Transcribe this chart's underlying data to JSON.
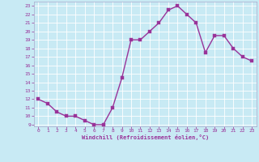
{
  "x": [
    0,
    1,
    2,
    3,
    4,
    5,
    6,
    7,
    8,
    9,
    10,
    11,
    12,
    13,
    14,
    15,
    16,
    17,
    18,
    19,
    20,
    21,
    22,
    23
  ],
  "y": [
    12,
    11.5,
    10.5,
    10,
    10,
    9.5,
    9,
    9,
    11,
    14.5,
    19,
    19,
    20,
    21,
    22.5,
    23,
    22,
    21,
    17.5,
    19.5,
    19.5,
    18,
    17,
    16.5
  ],
  "line_color": "#993399",
  "marker_color": "#993399",
  "bg_color": "#c8eaf4",
  "grid_color": "#aaccdd",
  "xlabel": "Windchill (Refroidissement éolien,°C)",
  "xlabel_color": "#993399",
  "tick_color": "#993399",
  "ylim": [
    9,
    23
  ],
  "xlim": [
    0,
    23
  ],
  "yticks": [
    9,
    10,
    11,
    12,
    13,
    14,
    15,
    16,
    17,
    18,
    19,
    20,
    21,
    22,
    23
  ],
  "xticks": [
    0,
    1,
    2,
    3,
    4,
    5,
    6,
    7,
    8,
    9,
    10,
    11,
    12,
    13,
    14,
    15,
    16,
    17,
    18,
    19,
    20,
    21,
    22,
    23
  ],
  "line_width": 1.0,
  "marker_size": 2.5
}
